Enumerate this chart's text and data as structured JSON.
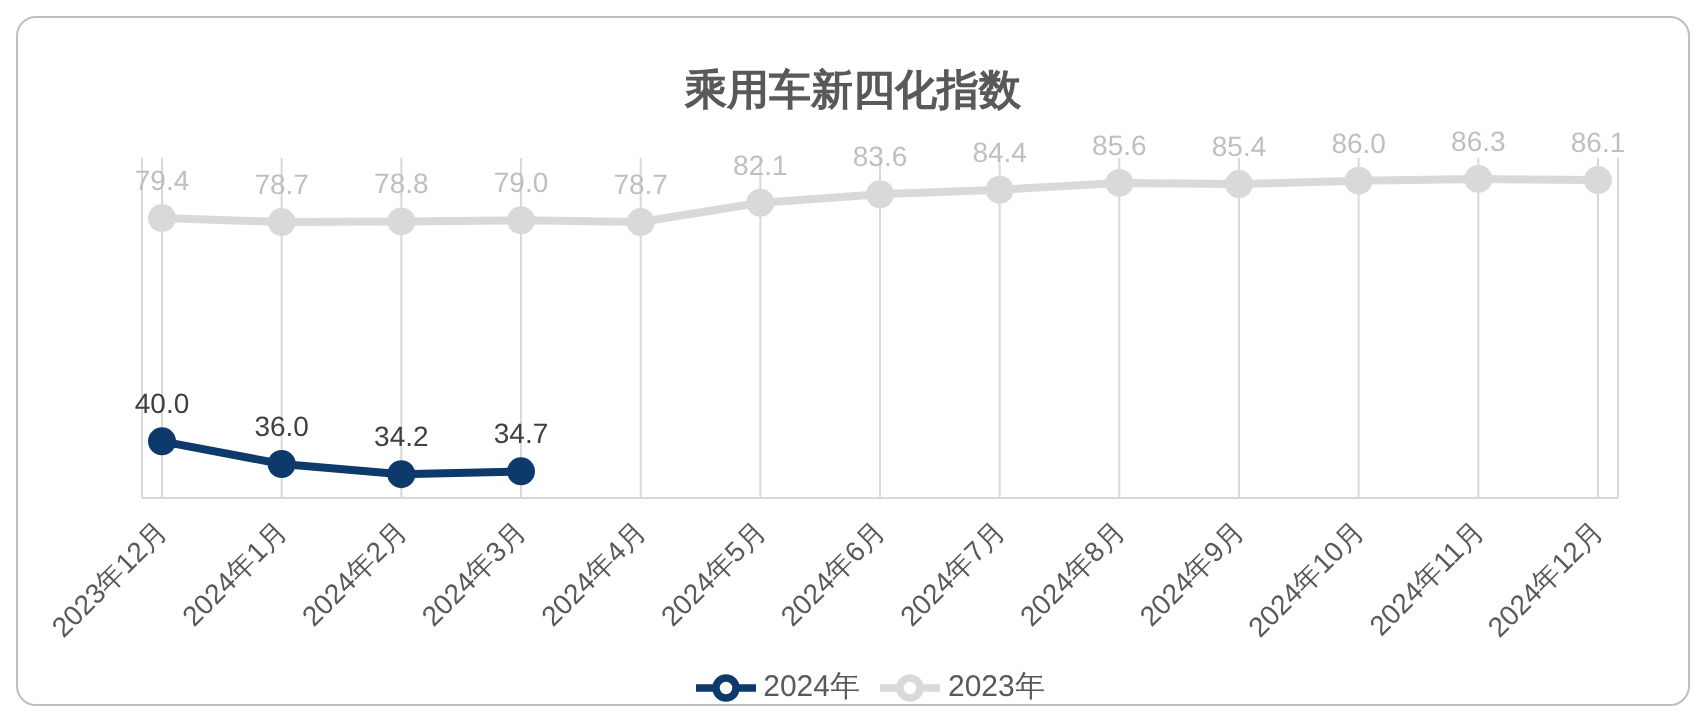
{
  "chart_data": {
    "type": "line",
    "title": "乘用车新四化指数",
    "categories": [
      "2023年12月",
      "2024年1月",
      "2024年2月",
      "2024年3月",
      "2024年4月",
      "2024年5月",
      "2024年6月",
      "2024年7月",
      "2024年8月",
      "2024年9月",
      "2024年10月",
      "2024年11月",
      "2024年12月"
    ],
    "series": [
      {
        "name": "2024年",
        "color": "#0d3a6b",
        "values": [
          40.0,
          36.0,
          34.2,
          34.7,
          null,
          null,
          null,
          null,
          null,
          null,
          null,
          null,
          null
        ],
        "value_labels": [
          "40.0",
          "36.0",
          "34.2",
          "34.7",
          null,
          null,
          null,
          null,
          null,
          null,
          null,
          null,
          null
        ]
      },
      {
        "name": "2023年",
        "color": "#d9d9d9",
        "values": [
          79.4,
          78.7,
          78.8,
          79.0,
          78.7,
          82.1,
          83.6,
          84.4,
          85.6,
          85.4,
          86.0,
          86.3,
          86.1
        ],
        "value_labels": [
          "79.4",
          "78.7",
          "78.8",
          "79.0",
          "78.7",
          "82.1",
          "83.6",
          "84.4",
          "85.6",
          "85.4",
          "86.0",
          "86.3",
          "86.1"
        ]
      }
    ],
    "grid": "x",
    "legend": "bottom",
    "marker": "circle",
    "line_style": "solid"
  }
}
